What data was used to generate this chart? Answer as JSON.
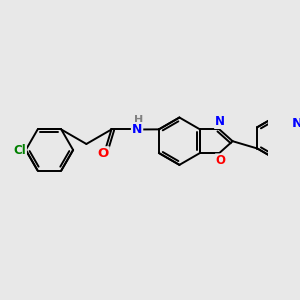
{
  "bg_color": "#e8e8e8",
  "bond_color": "#000000",
  "atom_colors": {
    "Cl": "#008000",
    "O": "#ff0000",
    "N": "#0000ff",
    "H": "#808080",
    "C": "#000000"
  },
  "line_width": 1.4,
  "dbo": 0.1,
  "figsize": [
    3.0,
    3.0
  ],
  "dpi": 100,
  "xlim": [
    -4.8,
    4.8
  ],
  "ylim": [
    -2.8,
    2.8
  ]
}
